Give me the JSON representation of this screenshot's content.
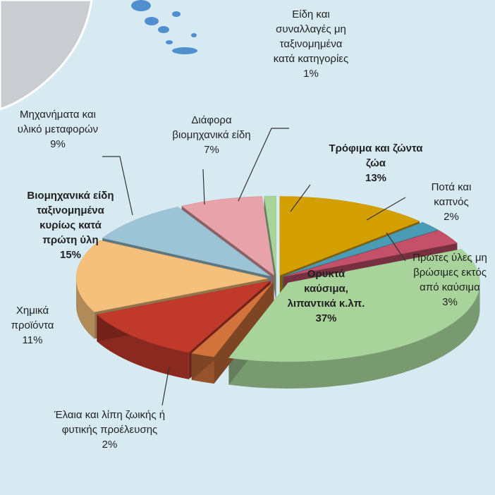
{
  "chart_data": {
    "type": "pie",
    "categories": [
      "Τρόφιμα και ζώντα ζώα",
      "Ποτά και καπνός",
      "Πρώτες ύλες μη βρώσιμες εκτός από καύσιμα",
      "Ορυκτά καύσιμα, λιπαντικά κ.λπ.",
      "Έλαια και λίπη ζωικής ή φυτικής προέλευσης",
      "Χημικά προϊόντα",
      "Βιομηχανικά είδη ταξινομημένα κυρίως κατά πρώτη ύλη",
      "Μηχανήματα και υλικό μεταφορών",
      "Διάφορα βιομηχανικά είδη",
      "Είδη και συναλλαγές μη ταξινομημένα κατά κατηγορίες"
    ],
    "values": [
      13,
      2,
      3,
      37,
      2,
      11,
      15,
      9,
      7,
      1
    ],
    "value_labels": [
      "13%",
      "2%",
      "3%",
      "37%",
      "2%",
      "11%",
      "15%",
      "9%",
      "7%",
      "1%"
    ],
    "colors": [
      "#d49f00",
      "#4a9bb5",
      "#c4506a",
      "#a8d49c",
      "#d2733c",
      "#c0392b",
      "#f5bf7c",
      "#9cc4d6",
      "#e8a2aa",
      "#a8d49c"
    ]
  }
}
